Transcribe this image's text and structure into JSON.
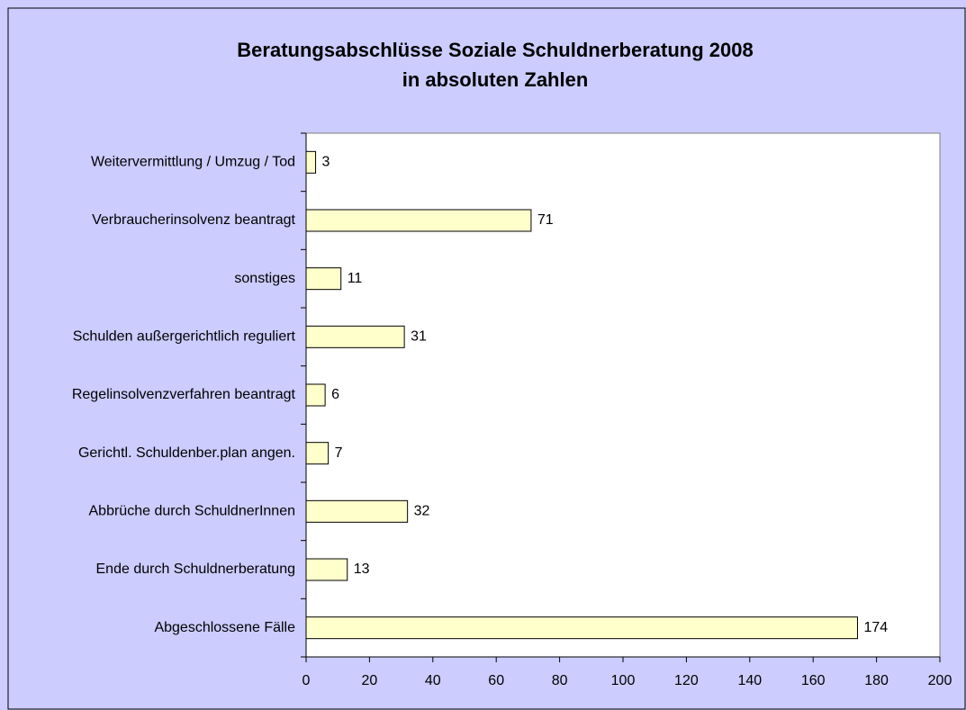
{
  "chart_data": {
    "type": "hbar",
    "title": [
      "Beratungsabschlüsse Soziale Schuldnerberatung 2008",
      "in absoluten Zahlen"
    ],
    "categories": [
      "Weitervermittlung / Umzug / Tod",
      "Verbraucherinsolvenz beantragt",
      "sonstiges",
      "Schulden außergerichtlich reguliert",
      "Regelinsolvenzverfahren beantragt",
      "Gerichtl. Schuldenber.plan angen.",
      "Abbrüche durch SchuldnerInnen",
      "Ende durch Schuldnerberatung",
      "Abgeschlossene Fälle"
    ],
    "values": [
      3,
      71,
      11,
      31,
      6,
      7,
      32,
      13,
      174
    ],
    "color": "#ffffcc",
    "xlim": [
      0,
      200
    ],
    "xticks": [
      0,
      20,
      40,
      60,
      80,
      100,
      120,
      140,
      160,
      180,
      200
    ]
  }
}
